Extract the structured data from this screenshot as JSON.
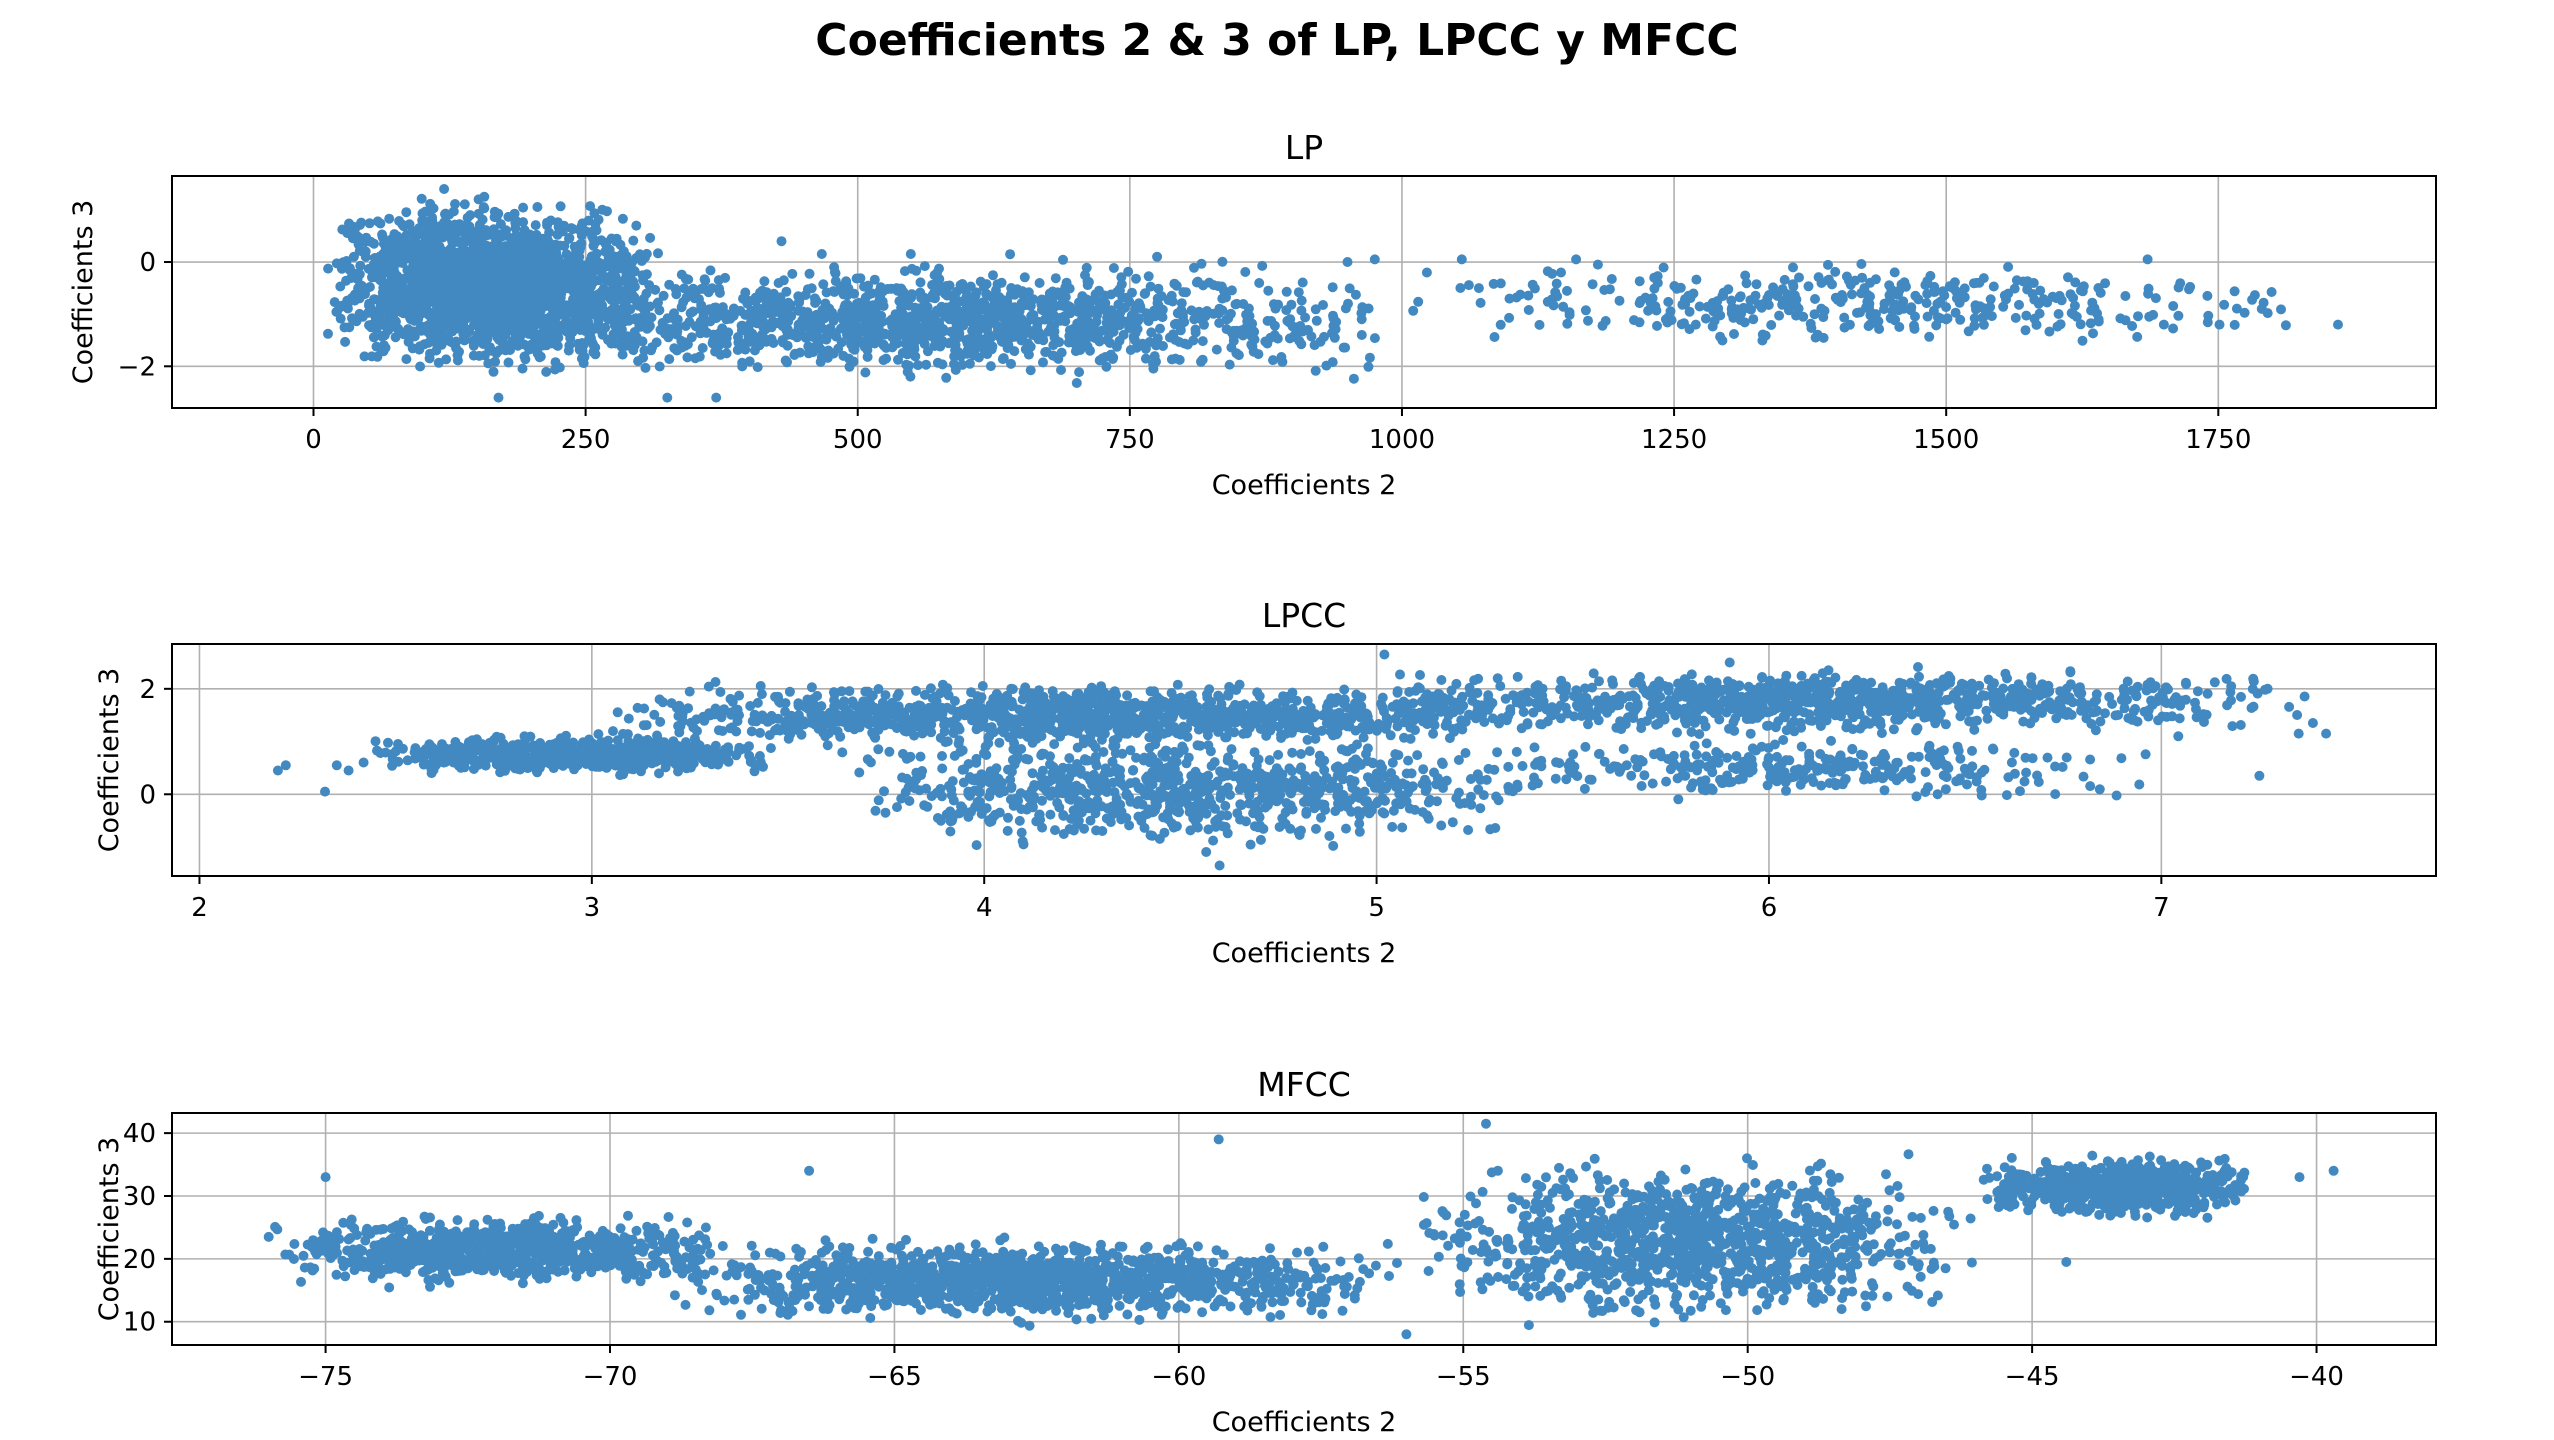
{
  "figure_title": "Coefficients 2 & 3 of LP, LPCC y MFCC",
  "chart_data": [
    {
      "type": "scatter",
      "title": "LP",
      "xlabel": "Coefficients 2",
      "ylabel": "Coefficients 3",
      "xlim": [
        -130,
        1950
      ],
      "ylim": [
        -2.8,
        1.65
      ],
      "xticks": [
        0,
        250,
        500,
        750,
        1000,
        1250,
        1500,
        1750
      ],
      "xtick_labels": [
        "0",
        "250",
        "500",
        "750",
        "1000",
        "1250",
        "1500",
        "1750"
      ],
      "yticks": [
        -2,
        0
      ],
      "ytick_labels": [
        "−2",
        "0"
      ],
      "grid": true,
      "color": "#4289c1",
      "clusters": [
        {
          "x": [
            10,
            320
          ],
          "y": [
            -2.3,
            1.4
          ],
          "weight": 0.55
        },
        {
          "x": [
            150,
            1000
          ],
          "y": [
            -2.4,
            0.2
          ],
          "weight": 0.35
        },
        {
          "x": [
            1000,
            1860
          ],
          "y": [
            -1.7,
            0.1
          ],
          "weight": 0.1
        }
      ],
      "points": [
        {
          "x": 120,
          "y": 1.4
        },
        {
          "x": 1860,
          "y": -1.2
        },
        {
          "x": 1740,
          "y": -0.65
        },
        {
          "x": 1790,
          "y": -0.9
        },
        {
          "x": 1565,
          "y": -0.35
        },
        {
          "x": 1500,
          "y": -1.1
        },
        {
          "x": 1620,
          "y": -1.05
        },
        {
          "x": 1640,
          "y": -1.1
        },
        {
          "x": 1700,
          "y": -1.2
        },
        {
          "x": 1160,
          "y": 0.05
        },
        {
          "x": 1055,
          "y": 0.05
        },
        {
          "x": 1235,
          "y": -0.4
        },
        {
          "x": 1295,
          "y": -0.65
        },
        {
          "x": 1270,
          "y": -1.2
        },
        {
          "x": 1430,
          "y": -1.2
        },
        {
          "x": 1380,
          "y": -1.45
        },
        {
          "x": 1350,
          "y": -0.75
        },
        {
          "x": 1180,
          "y": -0.05
        },
        {
          "x": 975,
          "y": 0.05
        },
        {
          "x": 950,
          "y": 0.0
        },
        {
          "x": 775,
          "y": 0.1
        },
        {
          "x": 325,
          "y": -2.6
        },
        {
          "x": 370,
          "y": -2.6
        },
        {
          "x": 170,
          "y": -2.6
        },
        {
          "x": 430,
          "y": 0.4
        },
        {
          "x": 640,
          "y": 0.15
        }
      ]
    },
    {
      "type": "scatter",
      "title": "LPCC",
      "xlabel": "Coefficients 2",
      "ylabel": "Coefficients 3",
      "xlim": [
        1.93,
        7.7
      ],
      "ylim": [
        -1.55,
        2.85
      ],
      "xticks": [
        2,
        3,
        4,
        5,
        6,
        7
      ],
      "xtick_labels": [
        "2",
        "3",
        "4",
        "5",
        "6",
        "7"
      ],
      "yticks": [
        0,
        2
      ],
      "ytick_labels": [
        "0",
        "2"
      ],
      "grid": true,
      "color": "#4289c1",
      "clusters": [
        {
          "x": [
            2.4,
            3.5
          ],
          "y": [
            0.3,
            1.2
          ],
          "weight": 0.16
        },
        {
          "x": [
            3.0,
            5.5
          ],
          "y": [
            0.8,
            2.2
          ],
          "weight": 0.3
        },
        {
          "x": [
            3.6,
            5.4
          ],
          "y": [
            -1.2,
            1.4
          ],
          "weight": 0.22
        },
        {
          "x": [
            5.0,
            7.4
          ],
          "y": [
            1.0,
            2.5
          ],
          "weight": 0.24
        },
        {
          "x": [
            5.2,
            7.0
          ],
          "y": [
            -0.2,
            1.2
          ],
          "weight": 0.08
        }
      ],
      "points": [
        {
          "x": 2.2,
          "y": 0.45
        },
        {
          "x": 2.22,
          "y": 0.55
        },
        {
          "x": 2.32,
          "y": 0.05
        },
        {
          "x": 2.35,
          "y": 0.55
        },
        {
          "x": 2.38,
          "y": 0.45
        },
        {
          "x": 7.42,
          "y": 1.15
        },
        {
          "x": 7.35,
          "y": 1.15
        },
        {
          "x": 7.25,
          "y": 0.35
        },
        {
          "x": 5.02,
          "y": 2.65
        },
        {
          "x": 5.9,
          "y": 2.5
        },
        {
          "x": 4.6,
          "y": -1.35
        },
        {
          "x": 4.1,
          "y": -0.95
        }
      ]
    },
    {
      "type": "scatter",
      "title": "MFCC",
      "xlabel": "Coefficients 2",
      "ylabel": "Coefficients 3",
      "xlim": [
        -77.7,
        -37.9
      ],
      "ylim": [
        6.3,
        43.2
      ],
      "xticks": [
        -75,
        -70,
        -65,
        -60,
        -55,
        -50,
        -45,
        -40
      ],
      "xtick_labels": [
        "−75",
        "−70",
        "−65",
        "−60",
        "−55",
        "−50",
        "−45",
        "−40"
      ],
      "yticks": [
        10,
        20,
        30,
        40
      ],
      "ytick_labels": [
        "10",
        "20",
        "30",
        "40"
      ],
      "grid": true,
      "color": "#4289c1",
      "clusters": [
        {
          "x": [
            -76,
            -68
          ],
          "y": [
            15,
            28
          ],
          "weight": 0.22
        },
        {
          "x": [
            -69,
            -56
          ],
          "y": [
            9,
            24
          ],
          "weight": 0.32
        },
        {
          "x": [
            -56,
            -46
          ],
          "y": [
            8,
            38
          ],
          "weight": 0.3
        },
        {
          "x": [
            -46,
            -41
          ],
          "y": [
            26,
            37
          ],
          "weight": 0.16
        }
      ],
      "points": [
        {
          "x": -54.6,
          "y": 41.5
        },
        {
          "x": -39.7,
          "y": 34.0
        },
        {
          "x": -40.3,
          "y": 33.0
        },
        {
          "x": -76.0,
          "y": 23.5
        },
        {
          "x": -75.0,
          "y": 33.0
        },
        {
          "x": -66.5,
          "y": 34.0
        },
        {
          "x": -59.3,
          "y": 39.0
        },
        {
          "x": -44.4,
          "y": 19.5
        },
        {
          "x": -56.0,
          "y": 8.0
        }
      ]
    }
  ]
}
